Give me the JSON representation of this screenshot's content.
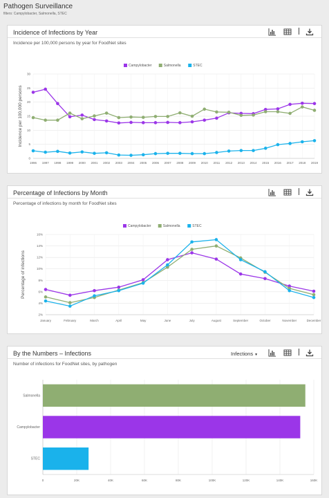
{
  "page": {
    "title": "Pathogen Surveillance",
    "filters": "filters: Campylobacter, Salmonella, STEC"
  },
  "colors": {
    "campylobacter": "#9b36e8",
    "salmonella": "#8fae72",
    "stec": "#1ab2eb"
  },
  "cards": {
    "year": {
      "title": "Incidence of Infections by Year",
      "subtitle": "Incidence per 100,000 persons by year for FoodNet sites"
    },
    "month": {
      "title": "Percentage of Infections by Month",
      "subtitle": "Percentage of infections by month for FoodNet sites"
    },
    "numbers": {
      "title": "By the Numbers – Infections",
      "subtitle": "Number of infections for FoodNet sites, by pathogen",
      "dropdown": "Infections"
    }
  },
  "toolbar_icons": [
    "bar-chart-icon",
    "table-icon",
    "download-icon"
  ],
  "chart_data": [
    {
      "type": "line",
      "ylabel": "Incidence per 100,000 persons",
      "ylim": [
        0,
        30
      ],
      "yticks": [
        0,
        5,
        10,
        15,
        20,
        25,
        30
      ],
      "legend": "top-center",
      "grid": true,
      "x": [
        "1996",
        "1997",
        "1998",
        "1999",
        "2000",
        "2001",
        "2002",
        "2003",
        "2004",
        "2005",
        "2006",
        "2007",
        "2008",
        "2009",
        "2010",
        "2011",
        "2012",
        "2013",
        "2014",
        "2015",
        "2016",
        "2017",
        "2018",
        "2019"
      ],
      "series": [
        {
          "name": "Campylobacter",
          "color": "#9b36e8",
          "values": [
            23.5,
            24.6,
            19.5,
            14.8,
            15.4,
            13.8,
            13.3,
            12.6,
            12.8,
            12.7,
            12.7,
            12.8,
            12.7,
            13.0,
            13.6,
            14.3,
            16.2,
            16.0,
            15.9,
            17.4,
            17.6,
            19.2,
            19.6,
            19.5
          ]
        },
        {
          "name": "Salmonella",
          "color": "#8fae72",
          "values": [
            14.5,
            13.6,
            13.6,
            16.1,
            14.1,
            15.1,
            16.1,
            14.5,
            14.7,
            14.6,
            14.9,
            14.9,
            16.2,
            15.0,
            17.5,
            16.5,
            16.4,
            15.3,
            15.4,
            16.6,
            16.6,
            16.0,
            18.3,
            17.1
          ]
        },
        {
          "name": "STEC",
          "color": "#1ab2eb",
          "values": [
            2.7,
            2.2,
            2.5,
            1.9,
            2.3,
            1.8,
            2.0,
            1.2,
            1.1,
            1.3,
            1.7,
            1.8,
            1.8,
            1.7,
            1.7,
            2.1,
            2.6,
            2.8,
            2.8,
            3.6,
            4.9,
            5.3,
            5.9,
            6.3
          ]
        }
      ]
    },
    {
      "type": "line",
      "ylabel": "Percentage of infections",
      "ylim": [
        2,
        16
      ],
      "yticks": [
        "2%",
        "4%",
        "6%",
        "8%",
        "10%",
        "12%",
        "14%",
        "16%"
      ],
      "legend": "top-center",
      "grid": true,
      "x": [
        "January",
        "February",
        "March",
        "April",
        "May",
        "June",
        "July",
        "August",
        "September",
        "October",
        "November",
        "December"
      ],
      "series": [
        {
          "name": "Campylobacter",
          "color": "#9b36e8",
          "values": [
            6.4,
            5.4,
            6.2,
            6.8,
            8.1,
            11.6,
            12.8,
            11.7,
            9.1,
            8.3,
            7.0,
            6.1
          ]
        },
        {
          "name": "Salmonella",
          "color": "#8fae72",
          "values": [
            5.1,
            4.1,
            5.0,
            6.3,
            7.6,
            10.3,
            13.4,
            14.0,
            11.9,
            9.4,
            6.6,
            5.5
          ]
        },
        {
          "name": "STEC",
          "color": "#1ab2eb",
          "values": [
            4.4,
            3.5,
            5.3,
            6.2,
            7.5,
            10.7,
            14.7,
            15.1,
            11.6,
            9.5,
            6.2,
            5.0
          ]
        }
      ]
    },
    {
      "type": "bar",
      "orientation": "horizontal",
      "categories": [
        "Salmonella",
        "Campylobacter",
        "STEC"
      ],
      "values": [
        155000,
        152000,
        27000
      ],
      "colors": [
        "#8fae72",
        "#9b36e8",
        "#1ab2eb"
      ],
      "xlim": [
        0,
        160000
      ],
      "xticks": [
        "0",
        "20K",
        "40K",
        "60K",
        "80K",
        "100K",
        "120K",
        "140K",
        "160K"
      ],
      "grid": true
    }
  ]
}
